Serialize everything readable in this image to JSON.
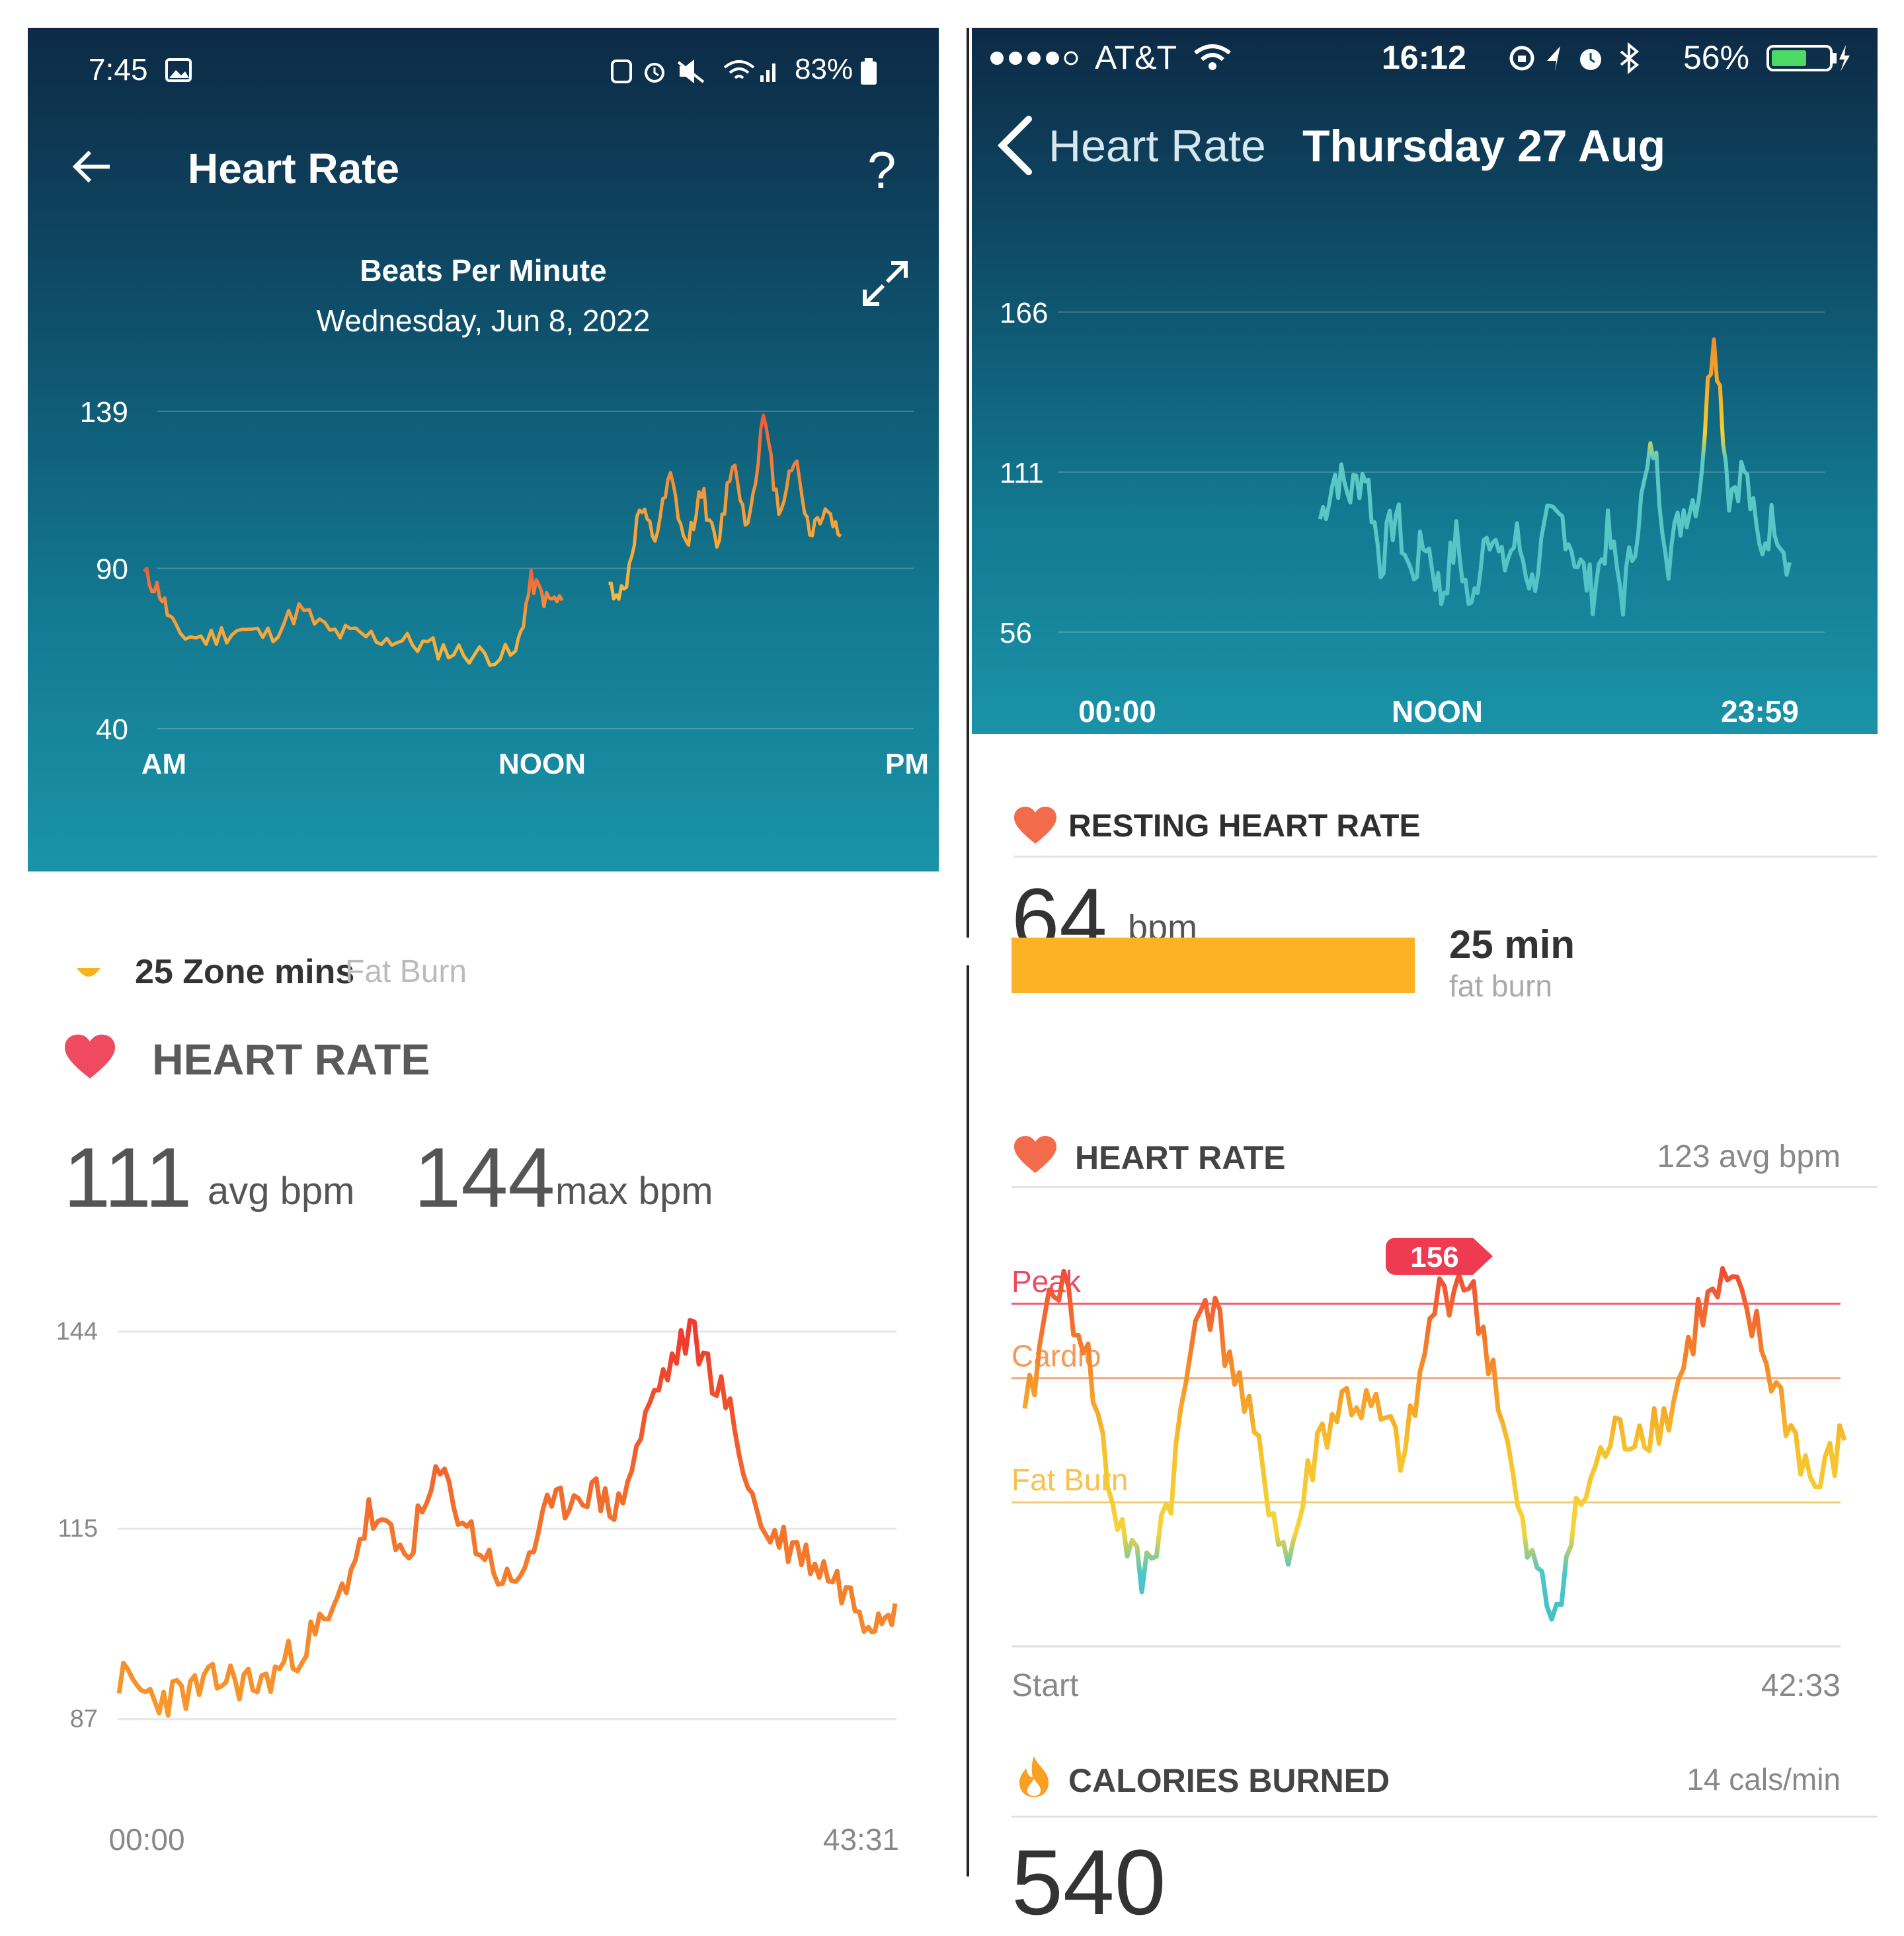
{
  "p1": {
    "status": {
      "time": "7:45",
      "battery": "83%"
    },
    "title": "Heart Rate",
    "help": "?",
    "chart_title": "Beats Per Minute",
    "date": "Wednesday, Jun 8, 2022",
    "icons": [
      "back-arrow-icon",
      "help-icon",
      "expand-icon",
      "image-icon",
      "alarm-icon",
      "mute-icon",
      "wifi-icon",
      "signal-icon",
      "battery-icon"
    ],
    "chart_data": {
      "type": "line",
      "yticks": [
        "139",
        "90",
        "40"
      ],
      "ylim": [
        40,
        139
      ],
      "xticks": [
        "AM",
        "NOON",
        "PM"
      ],
      "series": [
        {
          "x": [
            0,
            0.5,
            1,
            2,
            3,
            4,
            5,
            6,
            7,
            8,
            9,
            10,
            11,
            12,
            12.5,
            13,
            13.5
          ],
          "y": [
            88,
            83,
            70,
            68,
            71,
            69,
            77,
            70,
            69,
            68,
            66,
            64,
            63,
            63,
            86,
            80,
            80
          ]
        },
        {
          "x": [
            15,
            15.5,
            16,
            16.5,
            17,
            17.5,
            18,
            18.5,
            19,
            19.5,
            20,
            20.5,
            21,
            21.5,
            22,
            22.5
          ],
          "y": [
            84,
            82,
            108,
            99,
            118,
            96,
            115,
            95,
            124,
            103,
            137,
            108,
            125,
            101,
            109,
            100
          ]
        }
      ]
    }
  },
  "p2": {
    "status": {
      "carrier": "AT&T",
      "time": "16:12",
      "battery": "56%"
    },
    "back_label": "Heart Rate",
    "date": "Thursday 27 Aug",
    "icons": [
      "back-chevron-icon",
      "wifi-icon",
      "lock-rotation-icon",
      "location-icon",
      "alarm-icon",
      "bluetooth-icon",
      "battery-icon",
      "charging-icon"
    ],
    "chart_data": {
      "type": "line",
      "yticks": [
        "166",
        "111",
        "56"
      ],
      "ylim": [
        56,
        166
      ],
      "xticks": [
        "00:00",
        "NOON",
        "23:59"
      ],
      "x": [
        8,
        8.5,
        9,
        9.5,
        10,
        10.5,
        11,
        11.5,
        12,
        12.5,
        13,
        13.5,
        14,
        14.5,
        15,
        15.5,
        16,
        16.5,
        17,
        17.5,
        18,
        18.5,
        19,
        19.5,
        20,
        20.5,
        21,
        21.5,
        22,
        22.5,
        23,
        23.5
      ],
      "y": [
        95,
        110,
        104,
        112,
        80,
        97,
        75,
        88,
        68,
        88,
        62,
        95,
        78,
        88,
        72,
        92,
        95,
        80,
        70,
        90,
        68,
        95,
        120,
        82,
        98,
        104,
        162,
        104,
        112,
        84,
        96,
        80
      ]
    },
    "resting": {
      "label": "RESTING HEART RATE",
      "value": "64",
      "unit": "bpm"
    }
  },
  "p3": {
    "top_label": "25 Zone mins",
    "top_sub": "Fat Burn",
    "title": "HEART RATE",
    "avg": "111",
    "avg_unit": "avg bpm",
    "max": "144",
    "max_unit": "max bpm",
    "icons": [
      "heart-icon",
      "zone-dot-icon"
    ],
    "chart_data": {
      "type": "line",
      "yticks": [
        "144",
        "115",
        "87"
      ],
      "ylim": [
        87,
        144
      ],
      "xticks": [
        "00:00",
        "43:31"
      ],
      "x": [
        0,
        2,
        4,
        6,
        8,
        10,
        12,
        14,
        16,
        18,
        20,
        22,
        24,
        26,
        28,
        30,
        32,
        34,
        36,
        38,
        40,
        42,
        43.5
      ],
      "y": [
        93,
        90,
        91,
        93,
        92,
        97,
        102,
        117,
        111,
        123,
        113,
        106,
        117,
        121,
        118,
        135,
        144,
        134,
        115,
        112,
        108,
        102,
        104
      ]
    }
  },
  "p4": {
    "top_value": "25 min",
    "top_sub": "fat burn",
    "title": "HEART RATE",
    "avg": "123 avg bpm",
    "peak_label": "Peak",
    "cardio_label": "Cardio",
    "fatburn_label": "Fat Burn",
    "badge": "156",
    "start": "Start",
    "end": "42:33",
    "cal_title": "CALORIES BURNED",
    "cal_rate": "14 cals/min",
    "cal_value": "540",
    "icons": [
      "heart-icon",
      "flame-icon"
    ],
    "colors": {
      "zone_bar": "#fbb224",
      "peak_line": "#ef5a6f",
      "cardio_line": "#f4a77a",
      "fatburn_line": "#f2cd72"
    },
    "chart_data": {
      "type": "line",
      "ylim": [
        95,
        160
      ],
      "x": [
        0,
        1.5,
        3,
        4.5,
        6,
        7.5,
        9,
        10.5,
        12,
        13.5,
        15,
        16.5,
        18,
        19.5,
        21,
        22.5,
        24,
        25.5,
        27,
        28.5,
        30,
        31.5,
        33,
        34.5,
        36,
        37.5,
        39,
        40.5,
        42
      ],
      "y": [
        130,
        155,
        145,
        118,
        105,
        120,
        153,
        142,
        125,
        108,
        128,
        135,
        132,
        125,
        150,
        155,
        140,
        112,
        100,
        118,
        128,
        130,
        132,
        148,
        153,
        145,
        132,
        120,
        128
      ]
    }
  }
}
